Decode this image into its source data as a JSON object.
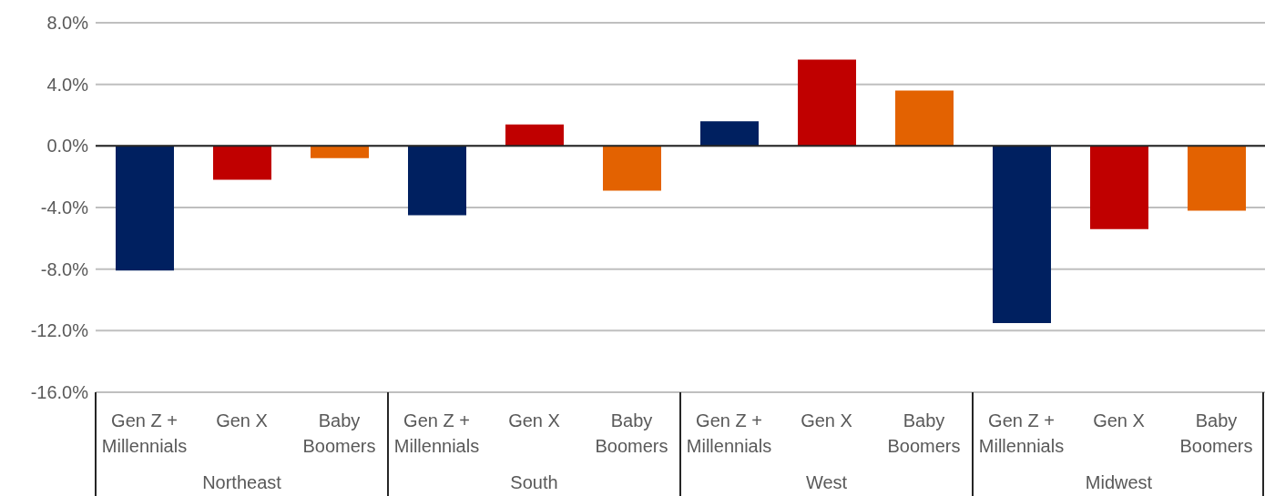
{
  "chart_data": {
    "type": "bar",
    "categories": [
      "Gen Z + Millennials",
      "Gen X",
      "Baby Boomers",
      "Gen Z + Millennials",
      "Gen X",
      "Baby Boomers",
      "Gen Z + Millennials",
      "Gen X",
      "Baby Boomers",
      "Gen Z + Millennials",
      "Gen X",
      "Baby Boomers"
    ],
    "values": [
      -8.1,
      -2.2,
      -0.8,
      -4.5,
      1.4,
      -2.9,
      1.6,
      5.6,
      3.6,
      -11.5,
      -5.4,
      -4.2
    ],
    "colors": [
      "#002060",
      "#c00000",
      "#e36201",
      "#002060",
      "#c00000",
      "#e36201",
      "#002060",
      "#c00000",
      "#e36201",
      "#002060",
      "#c00000",
      "#e36201"
    ],
    "annotations": [
      "Northeast",
      "South",
      "West",
      "Midwest"
    ],
    "ylim": [
      -16,
      8
    ],
    "yticks": [
      {
        "value": -16,
        "label": "-16.0%"
      },
      {
        "value": -12,
        "label": "-12.0%"
      },
      {
        "value": -8,
        "label": "-8.0%"
      },
      {
        "value": -4,
        "label": "-4.0%"
      },
      {
        "value": 0,
        "label": "0.0%"
      },
      {
        "value": 4,
        "label": "4.0%"
      },
      {
        "value": 8,
        "label": "8.0%"
      }
    ],
    "ref_lines": [
      {
        "axis": "y",
        "value": 0,
        "color": "#262626"
      }
    ],
    "grid": "y"
  }
}
